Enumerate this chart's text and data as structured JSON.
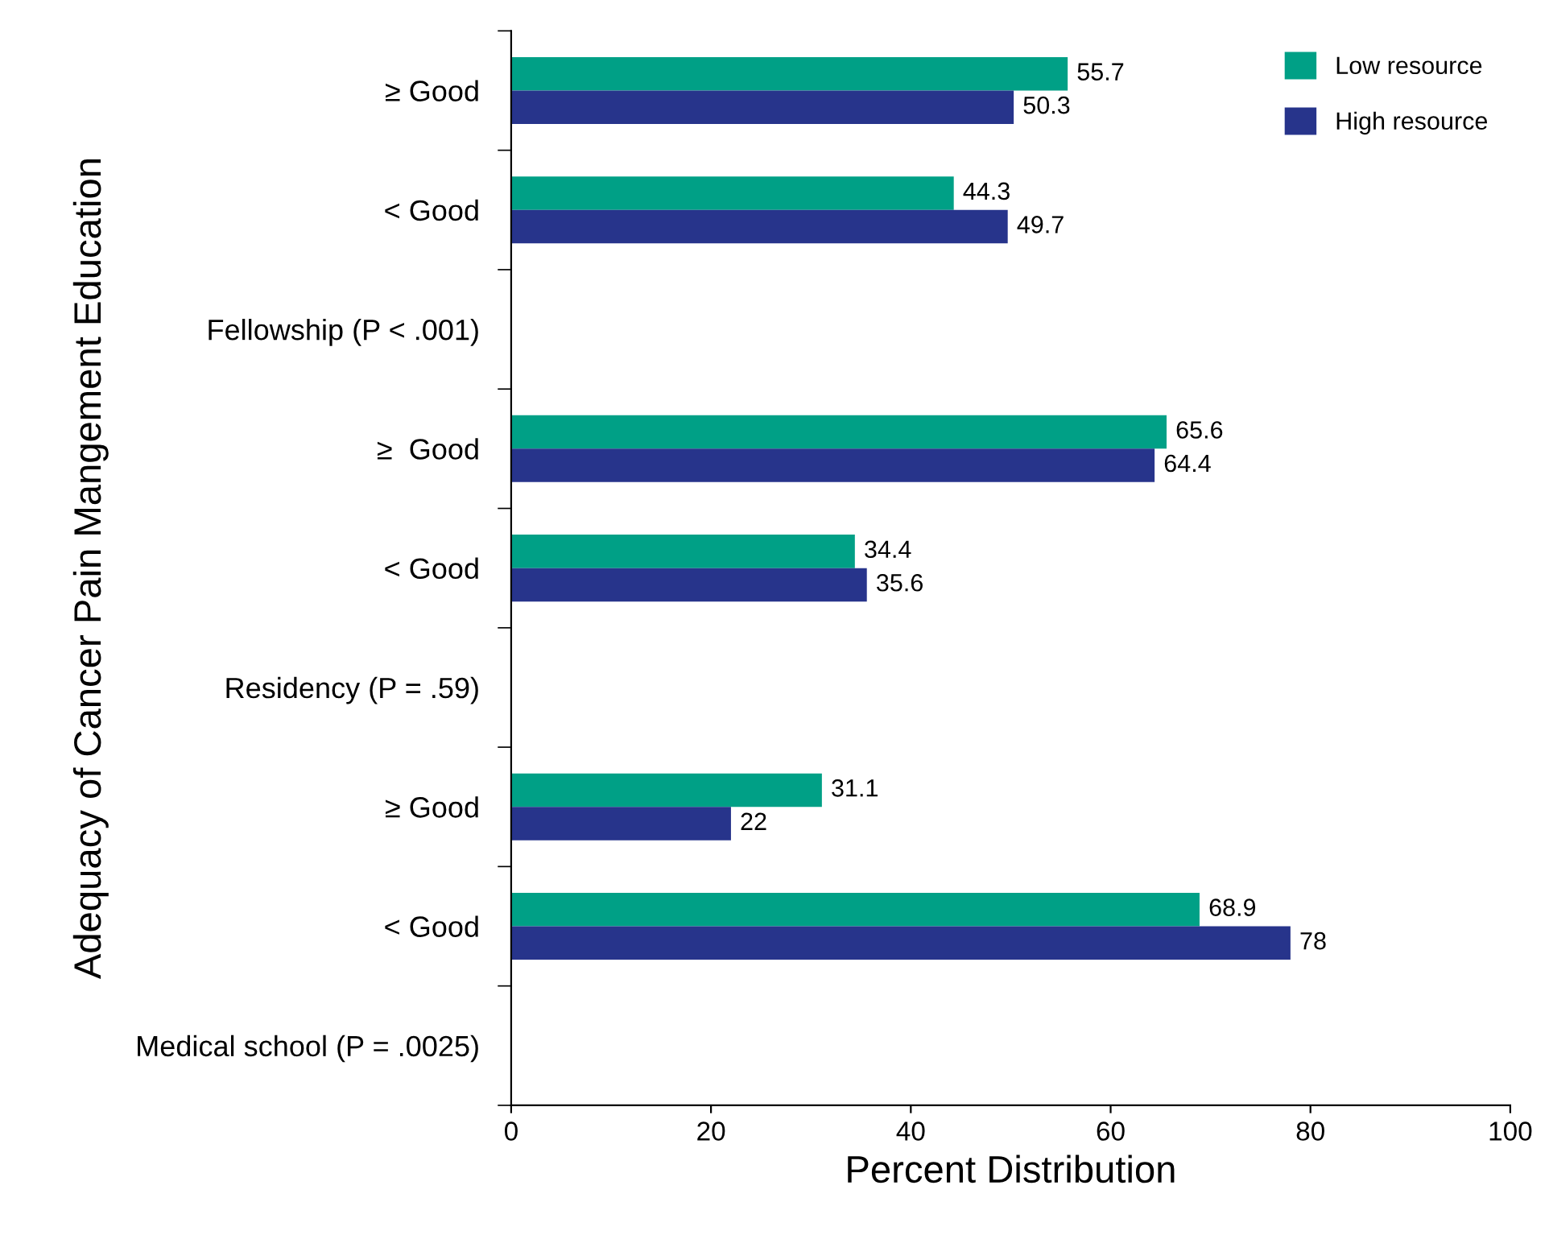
{
  "chart_data": {
    "type": "bar",
    "orientation": "horizontal",
    "xlabel": "Percent Distribution",
    "ylabel": "Adequacy of Cancer Pain Mangement Education",
    "categories": [
      "≥ Good",
      "< Good",
      "Fellowship (P < .001)",
      "≥  Good",
      "< Good",
      "Residency (P = .59)",
      "≥ Good",
      "< Good",
      "Medical school (P = .0025)"
    ],
    "series": [
      {
        "name": "Low resource",
        "color": "#00a086",
        "values": [
          55.7,
          44.3,
          null,
          65.6,
          34.4,
          null,
          31.1,
          68.9,
          null
        ]
      },
      {
        "name": "High resource",
        "color": "#27348b",
        "values": [
          50.3,
          49.7,
          null,
          64.4,
          35.6,
          null,
          22,
          78,
          null
        ]
      }
    ],
    "xlim": [
      0,
      100
    ],
    "xticks": [
      0,
      20,
      40,
      60,
      80,
      100
    ],
    "data_labels": true,
    "legend": "top right",
    "grid": false
  }
}
